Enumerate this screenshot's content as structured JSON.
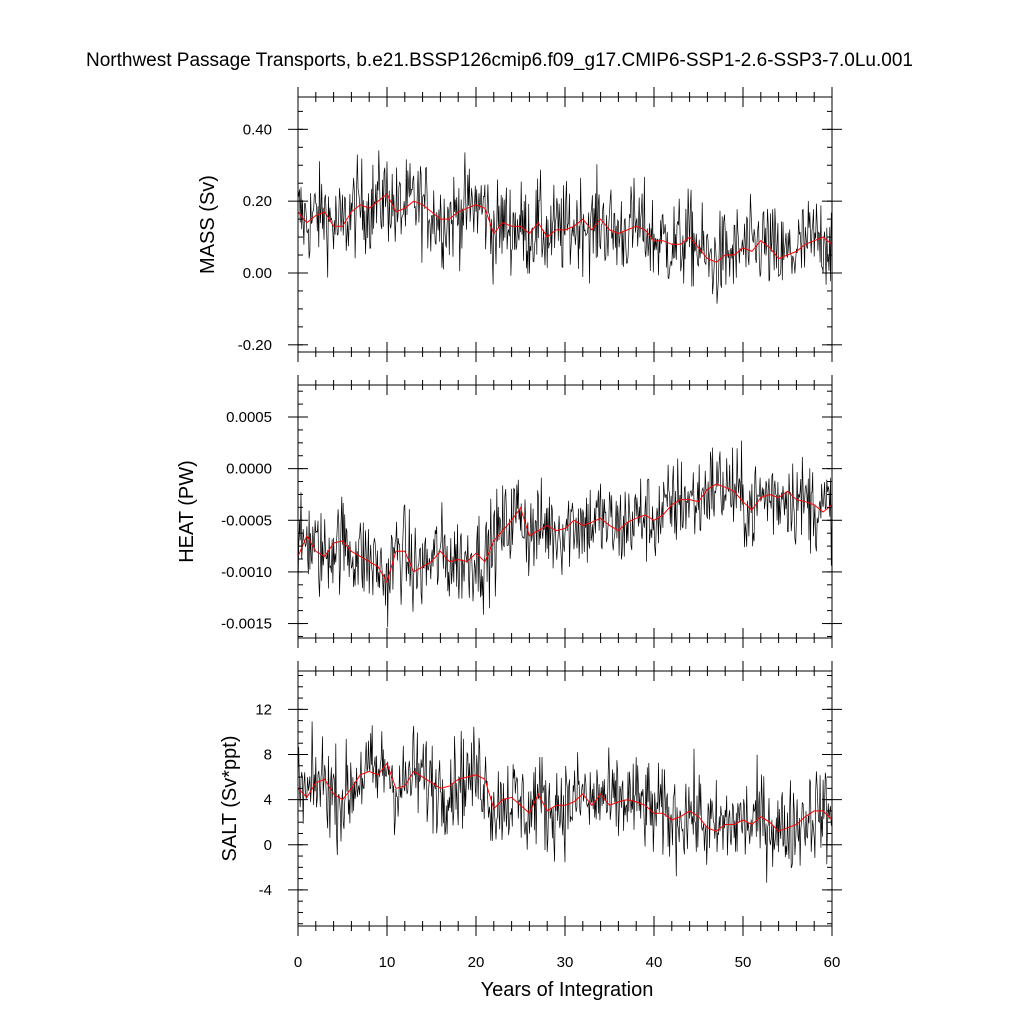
{
  "title": "Northwest Passage Transports, b.e21.BSSP126cmip6.f09_g17.CMIP6-SSP1-2.6-SSP3-7.0Lu.001",
  "xlabel": "Years of Integration",
  "colors": {
    "raw": "#000000",
    "smooth": "#ff0000"
  },
  "chart_data": [
    {
      "type": "line",
      "ylabel": "MASS (Sv)",
      "xlim": [
        0,
        60
      ],
      "ylim": [
        -0.22,
        0.49
      ],
      "xticks": [
        "0",
        "10",
        "20",
        "30",
        "40",
        "50",
        "60"
      ],
      "yticks": [
        {
          "value": 0.4,
          "label": "0.40"
        },
        {
          "value": 0.2,
          "label": "0.20"
        },
        {
          "value": 0.0,
          "label": "0.00"
        },
        {
          "value": -0.2,
          "label": "-0.20"
        }
      ],
      "series": [
        {
          "x": [
            0,
            1,
            2,
            3,
            4,
            5,
            6,
            7,
            8,
            9,
            10,
            11,
            12,
            13,
            14,
            15,
            16,
            17,
            18,
            19,
            20,
            21,
            22,
            23,
            24,
            25,
            26,
            27,
            28,
            29,
            30,
            31,
            32,
            33,
            34,
            35,
            36,
            37,
            38,
            39,
            40,
            41,
            42,
            43,
            44,
            45,
            46,
            47,
            48,
            49,
            50,
            51,
            52,
            53,
            54,
            55,
            56,
            57,
            58,
            59,
            60
          ],
          "values": [
            0.17,
            0.14,
            0.16,
            0.17,
            0.13,
            0.13,
            0.17,
            0.19,
            0.18,
            0.2,
            0.22,
            0.17,
            0.18,
            0.2,
            0.19,
            0.17,
            0.15,
            0.15,
            0.17,
            0.18,
            0.19,
            0.18,
            0.11,
            0.14,
            0.13,
            0.13,
            0.11,
            0.14,
            0.1,
            0.12,
            0.12,
            0.13,
            0.15,
            0.12,
            0.15,
            0.12,
            0.11,
            0.12,
            0.13,
            0.12,
            0.09,
            0.09,
            0.08,
            0.08,
            0.1,
            0.07,
            0.04,
            0.03,
            0.05,
            0.05,
            0.07,
            0.06,
            0.09,
            0.07,
            0.04,
            0.05,
            0.06,
            0.08,
            0.09,
            0.1,
            0.08
          ]
        }
      ]
    },
    {
      "type": "line",
      "ylabel": "HEAT (PW)",
      "xlim": [
        0,
        60
      ],
      "ylim": [
        -0.00164,
        0.00081
      ],
      "xticks": [
        "0",
        "10",
        "20",
        "30",
        "40",
        "50",
        "60"
      ],
      "yticks": [
        {
          "value": 0.0005,
          "label": "0.0005"
        },
        {
          "value": 0.0,
          "label": "0.0000"
        },
        {
          "value": -0.0005,
          "label": "-0.0005"
        },
        {
          "value": -0.001,
          "label": "-0.0010"
        },
        {
          "value": -0.0015,
          "label": "-0.0015"
        }
      ],
      "series": [
        {
          "x": [
            0,
            1,
            2,
            3,
            4,
            5,
            6,
            7,
            8,
            9,
            10,
            11,
            12,
            13,
            14,
            15,
            16,
            17,
            18,
            19,
            20,
            21,
            22,
            23,
            24,
            25,
            26,
            27,
            28,
            29,
            30,
            31,
            32,
            33,
            34,
            35,
            36,
            37,
            38,
            39,
            40,
            41,
            42,
            43,
            44,
            45,
            46,
            47,
            48,
            49,
            50,
            51,
            52,
            53,
            54,
            55,
            56,
            57,
            58,
            59,
            60
          ],
          "values": [
            -0.00085,
            -0.00065,
            -0.0008,
            -0.00085,
            -0.00072,
            -0.0007,
            -0.0008,
            -0.00085,
            -0.0009,
            -0.00095,
            -0.0011,
            -0.0008,
            -0.0008,
            -0.001,
            -0.00095,
            -0.0009,
            -0.0008,
            -0.0009,
            -0.00088,
            -0.0009,
            -0.00082,
            -0.0009,
            -0.0007,
            -0.0006,
            -0.0005,
            -0.00038,
            -0.00065,
            -0.0006,
            -0.00055,
            -0.0006,
            -0.00058,
            -0.0005,
            -0.00055,
            -0.00052,
            -0.00048,
            -0.00055,
            -0.0006,
            -0.00052,
            -0.00048,
            -0.00045,
            -0.0005,
            -0.00045,
            -0.00035,
            -0.0003,
            -0.0003,
            -0.00032,
            -0.0002,
            -0.00015,
            -0.00018,
            -0.00022,
            -0.00032,
            -0.0004,
            -0.00028,
            -0.00025,
            -0.00028,
            -0.00022,
            -0.0003,
            -0.00032,
            -0.00035,
            -0.00042,
            -0.00035
          ]
        }
      ]
    },
    {
      "type": "line",
      "ylabel": "SALT (Sv*ppt)",
      "xlim": [
        0,
        60
      ],
      "ylim": [
        -7.2,
        15.4
      ],
      "xticks": [
        "0",
        "10",
        "20",
        "30",
        "40",
        "50",
        "60"
      ],
      "yticks": [
        {
          "value": 12,
          "label": "12"
        },
        {
          "value": 8,
          "label": "8"
        },
        {
          "value": 4,
          "label": "4"
        },
        {
          "value": 0,
          "label": "0"
        },
        {
          "value": -4,
          "label": "-4"
        }
      ],
      "series": [
        {
          "x": [
            0,
            1,
            2,
            3,
            4,
            5,
            6,
            7,
            8,
            9,
            10,
            11,
            12,
            13,
            14,
            15,
            16,
            17,
            18,
            19,
            20,
            21,
            22,
            23,
            24,
            25,
            26,
            27,
            28,
            29,
            30,
            31,
            32,
            33,
            34,
            35,
            36,
            37,
            38,
            39,
            40,
            41,
            42,
            43,
            44,
            45,
            46,
            47,
            48,
            49,
            50,
            51,
            52,
            53,
            54,
            55,
            56,
            57,
            58,
            59,
            60
          ],
          "values": [
            5.0,
            4.2,
            5.5,
            5.8,
            4.5,
            4.0,
            5.0,
            6.2,
            6.5,
            6.2,
            7.2,
            5.0,
            5.2,
            6.5,
            6.0,
            5.5,
            5.0,
            5.2,
            5.8,
            6.0,
            6.2,
            5.8,
            3.2,
            4.0,
            4.2,
            3.5,
            2.8,
            4.5,
            3.0,
            3.5,
            3.5,
            3.8,
            4.5,
            3.5,
            4.5,
            3.5,
            3.8,
            4.0,
            3.8,
            3.5,
            2.8,
            2.8,
            2.2,
            2.5,
            3.0,
            2.5,
            1.5,
            1.2,
            1.8,
            1.8,
            2.2,
            1.8,
            2.5,
            2.0,
            1.2,
            1.5,
            1.8,
            2.5,
            3.0,
            3.0,
            2.2
          ]
        }
      ]
    }
  ]
}
